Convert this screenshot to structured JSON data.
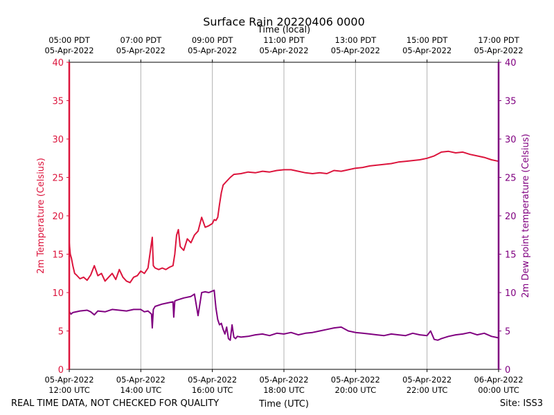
{
  "colors": {
    "temperature": "#dc143c",
    "dewpoint": "#800080",
    "grid": "#b0b0b0",
    "axis": "#000000"
  },
  "chart_data": {
    "type": "line",
    "title": "Surface Rain 20220406 0000",
    "top_xlabel": "Time (local)",
    "xlabel": "Time (UTC)",
    "ylabel_left": "2m Temperature (Celsius)",
    "ylabel_right": "2m Dew point temperature (Celsius)",
    "ylim": [
      0,
      40
    ],
    "y_ticks": [
      "0",
      "5",
      "10",
      "15",
      "20",
      "25",
      "30",
      "35",
      "40"
    ],
    "x_range_hours_utc": [
      12,
      24
    ],
    "grid": "vertical",
    "bottom_ticks": [
      {
        "hour": 12,
        "line1": "05-Apr-2022",
        "line2": "12:00 UTC"
      },
      {
        "hour": 14,
        "line1": "05-Apr-2022",
        "line2": "14:00 UTC"
      },
      {
        "hour": 16,
        "line1": "05-Apr-2022",
        "line2": "16:00 UTC"
      },
      {
        "hour": 18,
        "line1": "05-Apr-2022",
        "line2": "18:00 UTC"
      },
      {
        "hour": 20,
        "line1": "05-Apr-2022",
        "line2": "20:00 UTC"
      },
      {
        "hour": 22,
        "line1": "05-Apr-2022",
        "line2": "22:00 UTC"
      },
      {
        "hour": 24,
        "line1": "06-Apr-2022",
        "line2": "00:00 UTC"
      }
    ],
    "top_ticks": [
      {
        "hour": 12,
        "line1": "05:00 PDT",
        "line2": "05-Apr-2022"
      },
      {
        "hour": 14,
        "line1": "07:00 PDT",
        "line2": "05-Apr-2022"
      },
      {
        "hour": 16,
        "line1": "09:00 PDT",
        "line2": "05-Apr-2022"
      },
      {
        "hour": 18,
        "line1": "11:00 PDT",
        "line2": "05-Apr-2022"
      },
      {
        "hour": 20,
        "line1": "13:00 PDT",
        "line2": "05-Apr-2022"
      },
      {
        "hour": 22,
        "line1": "15:00 PDT",
        "line2": "05-Apr-2022"
      },
      {
        "hour": 24,
        "line1": "17:00 PDT",
        "line2": "05-Apr-2022"
      }
    ],
    "series": [
      {
        "name": "2m Temperature",
        "axis": "left",
        "color": "#dc143c",
        "x": [
          12.0,
          12.03,
          12.06,
          12.1,
          12.15,
          12.2,
          12.3,
          12.4,
          12.5,
          12.6,
          12.7,
          12.8,
          12.9,
          13.0,
          13.1,
          13.2,
          13.3,
          13.4,
          13.5,
          13.6,
          13.7,
          13.8,
          13.9,
          14.0,
          14.1,
          14.2,
          14.3,
          14.32,
          14.35,
          14.4,
          14.5,
          14.6,
          14.7,
          14.8,
          14.9,
          14.95,
          15.0,
          15.05,
          15.1,
          15.2,
          15.3,
          15.4,
          15.5,
          15.6,
          15.7,
          15.8,
          15.9,
          16.0,
          16.05,
          16.1,
          16.15,
          16.2,
          16.25,
          16.3,
          16.4,
          16.5,
          16.6,
          16.8,
          17.0,
          17.2,
          17.4,
          17.6,
          17.8,
          18.0,
          18.2,
          18.4,
          18.6,
          18.8,
          19.0,
          19.2,
          19.4,
          19.6,
          19.8,
          20.0,
          20.2,
          20.4,
          20.6,
          20.8,
          21.0,
          21.2,
          21.4,
          21.6,
          21.8,
          22.0,
          22.2,
          22.4,
          22.6,
          22.8,
          23.0,
          23.2,
          23.4,
          23.6,
          23.8,
          24.0
        ],
        "values": [
          16.5,
          15.0,
          14.5,
          13.5,
          12.5,
          12.3,
          11.8,
          12.0,
          11.6,
          12.3,
          13.5,
          12.2,
          12.5,
          11.5,
          12.0,
          12.5,
          11.7,
          13.0,
          12.0,
          11.5,
          11.3,
          12.0,
          12.2,
          12.8,
          12.5,
          13.2,
          16.5,
          17.2,
          13.5,
          13.2,
          13.0,
          13.2,
          13.0,
          13.3,
          13.5,
          15.0,
          17.5,
          18.2,
          16.0,
          15.5,
          17.0,
          16.5,
          17.5,
          18.0,
          19.8,
          18.5,
          18.7,
          19.0,
          19.5,
          19.4,
          19.8,
          21.5,
          23.0,
          24.0,
          24.5,
          25.0,
          25.4,
          25.5,
          25.7,
          25.6,
          25.8,
          25.7,
          25.9,
          26.0,
          26.0,
          25.8,
          25.6,
          25.5,
          25.6,
          25.5,
          25.9,
          25.8,
          26.0,
          26.2,
          26.3,
          26.5,
          26.6,
          26.7,
          26.8,
          27.0,
          27.1,
          27.2,
          27.3,
          27.5,
          27.8,
          28.3,
          28.4,
          28.2,
          28.3,
          28.0,
          27.8,
          27.6,
          27.3,
          27.1
        ]
      },
      {
        "name": "2m Dew point temperature",
        "axis": "right",
        "color": "#800080",
        "x": [
          12.0,
          12.05,
          12.1,
          12.3,
          12.5,
          12.6,
          12.7,
          12.8,
          13.0,
          13.2,
          13.4,
          13.6,
          13.8,
          14.0,
          14.1,
          14.2,
          14.3,
          14.32,
          14.35,
          14.4,
          14.6,
          14.8,
          14.9,
          14.92,
          14.95,
          15.0,
          15.2,
          15.4,
          15.5,
          15.6,
          15.7,
          15.8,
          15.9,
          16.0,
          16.05,
          16.1,
          16.15,
          16.2,
          16.25,
          16.3,
          16.35,
          16.4,
          16.45,
          16.5,
          16.55,
          16.6,
          16.65,
          16.7,
          16.8,
          17.0,
          17.2,
          17.4,
          17.6,
          17.8,
          18.0,
          18.2,
          18.4,
          18.6,
          18.8,
          19.0,
          19.2,
          19.4,
          19.6,
          19.8,
          20.0,
          20.2,
          20.4,
          20.6,
          20.8,
          21.0,
          21.2,
          21.4,
          21.6,
          21.8,
          22.0,
          22.1,
          22.2,
          22.3,
          22.4,
          22.6,
          22.8,
          23.0,
          23.2,
          23.4,
          23.6,
          23.8,
          24.0
        ],
        "values": [
          7.5,
          7.2,
          7.4,
          7.6,
          7.7,
          7.5,
          7.1,
          7.6,
          7.5,
          7.8,
          7.7,
          7.6,
          7.8,
          7.8,
          7.5,
          7.6,
          7.2,
          5.4,
          7.8,
          8.2,
          8.5,
          8.7,
          8.8,
          6.8,
          8.9,
          9.0,
          9.3,
          9.5,
          9.8,
          7.0,
          10.0,
          10.1,
          10.0,
          10.2,
          10.3,
          8.0,
          6.5,
          5.8,
          6.0,
          5.2,
          4.6,
          5.5,
          4.0,
          3.8,
          5.8,
          4.2,
          4.0,
          4.3,
          4.2,
          4.3,
          4.5,
          4.6,
          4.4,
          4.7,
          4.6,
          4.8,
          4.5,
          4.7,
          4.8,
          5.0,
          5.2,
          5.4,
          5.5,
          5.0,
          4.8,
          4.7,
          4.6,
          4.5,
          4.4,
          4.6,
          4.5,
          4.4,
          4.7,
          4.5,
          4.4,
          5.0,
          3.9,
          3.8,
          4.0,
          4.3,
          4.5,
          4.6,
          4.8,
          4.5,
          4.7,
          4.3,
          4.1
        ]
      }
    ]
  },
  "footer": {
    "disclaimer": "REAL TIME DATA, NOT CHECKED FOR QUALITY",
    "site": "Site: ISS3"
  }
}
